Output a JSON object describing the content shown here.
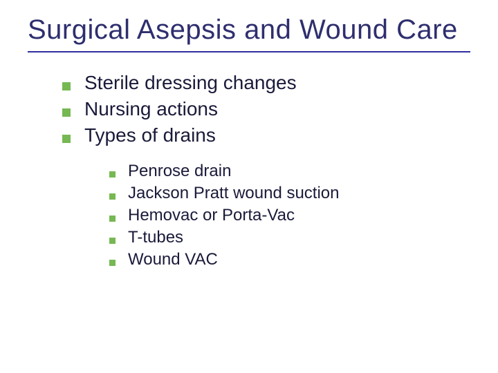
{
  "slide": {
    "title": "Surgical Asepsis and Wound Care",
    "title_color": "#2e2e6e",
    "title_fontsize": 40,
    "rule_color": "#2e2e9e",
    "background_color": "#ffffff",
    "body_text_color": "#1a1a3a",
    "bullet_color": "#76b852",
    "bullets_l1": [
      {
        "text": "Sterile dressing changes"
      },
      {
        "text": "Nursing actions"
      },
      {
        "text": "Types of drains"
      }
    ],
    "bullets_l2": [
      {
        "text": "Penrose drain"
      },
      {
        "text": "Jackson Pratt wound suction"
      },
      {
        "text": "Hemovac or Porta-Vac"
      },
      {
        "text": "T-tubes"
      },
      {
        "text": "Wound VAC"
      }
    ],
    "l1_fontsize": 28,
    "l2_fontsize": 24,
    "l1_bullet_size": 12,
    "l2_bullet_size": 9
  }
}
